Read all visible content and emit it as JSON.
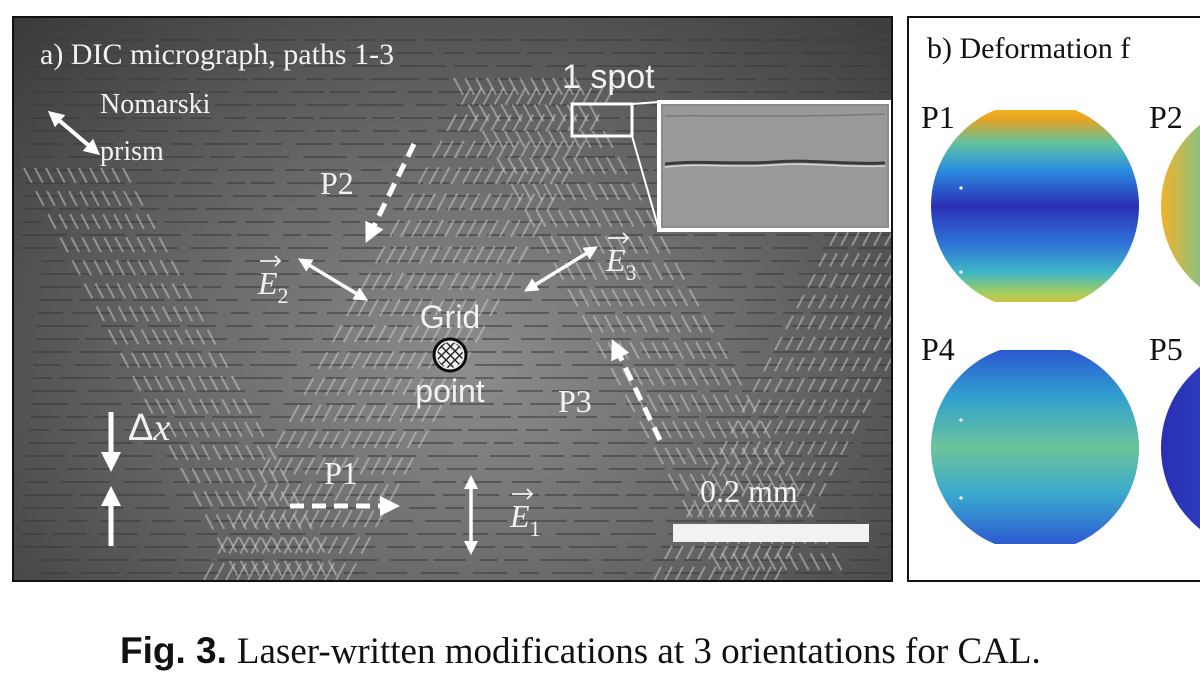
{
  "panel_a": {
    "title": "a) DIC micrograph, paths 1-3",
    "prism_label_line1": "Nomarski",
    "prism_label_line2": "prism",
    "spot_label": "1 spot",
    "path_labels": [
      "P1",
      "P2",
      "P3"
    ],
    "field_symbol": "E",
    "field_subscripts": [
      "1",
      "2",
      "3"
    ],
    "grid_label_line1": "Grid",
    "grid_label_line2": "point",
    "delta_label": "Δ",
    "delta_var": "x",
    "scale_label": "0.2 mm"
  },
  "panel_b": {
    "title": "b) Deformation f",
    "labels": [
      "P1",
      "P2",
      "P4",
      "P5"
    ]
  },
  "caption": {
    "label": "Fig. 3.",
    "text": "Laser-written modifications at 3 orientations for CAL."
  }
}
